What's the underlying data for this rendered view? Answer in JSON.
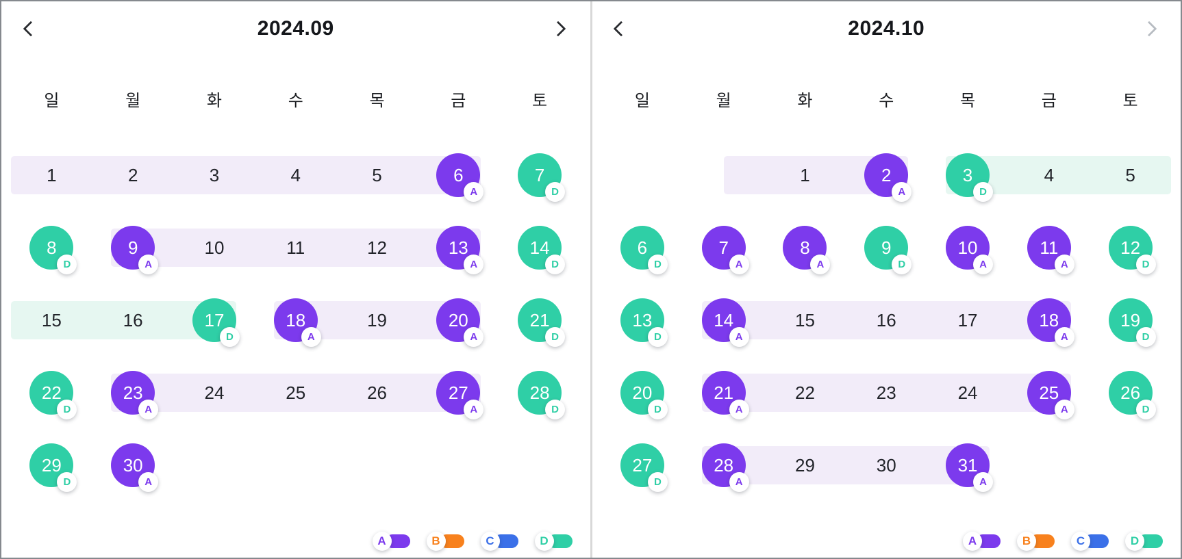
{
  "colors": {
    "A": "#7C3AED",
    "B": "#F8811D",
    "C": "#3B70E8",
    "D": "#2FCFA6",
    "band_A": "#F2ECF9",
    "band_D": "#E6F7F1",
    "nav_disabled": "#B7BCC2"
  },
  "weekdays": [
    "일",
    "월",
    "화",
    "수",
    "목",
    "금",
    "토"
  ],
  "legend": [
    {
      "label": "A",
      "color": "#7C3AED"
    },
    {
      "label": "B",
      "color": "#F8811D"
    },
    {
      "label": "C",
      "color": "#3B70E8"
    },
    {
      "label": "D",
      "color": "#2FCFA6"
    }
  ],
  "calendars": [
    {
      "title": "2024.09",
      "nav": {
        "prev_enabled": true,
        "next_enabled": true
      },
      "weeks": [
        {
          "bands": [
            {
              "event": "A",
              "from": 0,
              "to": 5,
              "from_edge": "row_start",
              "to_edge": "circle_right"
            }
          ],
          "days": [
            {
              "col": 0,
              "label": "1"
            },
            {
              "col": 1,
              "label": "2"
            },
            {
              "col": 2,
              "label": "3"
            },
            {
              "col": 3,
              "label": "4"
            },
            {
              "col": 4,
              "label": "5"
            },
            {
              "col": 5,
              "label": "6",
              "event": "A"
            },
            {
              "col": 6,
              "label": "7",
              "event": "D"
            }
          ]
        },
        {
          "bands": [
            {
              "event": "A",
              "from": 1,
              "to": 5,
              "from_edge": "circle_left",
              "to_edge": "circle_right"
            }
          ],
          "days": [
            {
              "col": 0,
              "label": "8",
              "event": "D"
            },
            {
              "col": 1,
              "label": "9",
              "event": "A"
            },
            {
              "col": 2,
              "label": "10"
            },
            {
              "col": 3,
              "label": "11"
            },
            {
              "col": 4,
              "label": "12"
            },
            {
              "col": 5,
              "label": "13",
              "event": "A"
            },
            {
              "col": 6,
              "label": "14",
              "event": "D"
            }
          ]
        },
        {
          "bands": [
            {
              "event": "D",
              "from": 0,
              "to": 2,
              "from_edge": "row_start",
              "to_edge": "circle_right"
            },
            {
              "event": "A",
              "from": 3,
              "to": 5,
              "from_edge": "circle_left",
              "to_edge": "circle_right"
            }
          ],
          "days": [
            {
              "col": 0,
              "label": "15"
            },
            {
              "col": 1,
              "label": "16"
            },
            {
              "col": 2,
              "label": "17",
              "event": "D"
            },
            {
              "col": 3,
              "label": "18",
              "event": "A"
            },
            {
              "col": 4,
              "label": "19"
            },
            {
              "col": 5,
              "label": "20",
              "event": "A"
            },
            {
              "col": 6,
              "label": "21",
              "event": "D"
            }
          ]
        },
        {
          "bands": [
            {
              "event": "A",
              "from": 1,
              "to": 5,
              "from_edge": "circle_left",
              "to_edge": "circle_right"
            }
          ],
          "days": [
            {
              "col": 0,
              "label": "22",
              "event": "D"
            },
            {
              "col": 1,
              "label": "23",
              "event": "A"
            },
            {
              "col": 2,
              "label": "24"
            },
            {
              "col": 3,
              "label": "25"
            },
            {
              "col": 4,
              "label": "26"
            },
            {
              "col": 5,
              "label": "27",
              "event": "A"
            },
            {
              "col": 6,
              "label": "28",
              "event": "D"
            }
          ]
        },
        {
          "bands": [],
          "days": [
            {
              "col": 0,
              "label": "29",
              "event": "D"
            },
            {
              "col": 1,
              "label": "30",
              "event": "A"
            }
          ]
        }
      ]
    },
    {
      "title": "2024.10",
      "nav": {
        "prev_enabled": true,
        "next_enabled": false
      },
      "weeks": [
        {
          "bands": [
            {
              "event": "A",
              "from": 1,
              "to": 3,
              "from_edge": "center",
              "to_edge": "circle_right"
            },
            {
              "event": "D",
              "from": 4,
              "to": 6,
              "from_edge": "circle_left",
              "to_edge": "row_end"
            }
          ],
          "days": [
            {
              "col": 2,
              "label": "1"
            },
            {
              "col": 3,
              "label": "2",
              "event": "A"
            },
            {
              "col": 4,
              "label": "3",
              "event": "D"
            },
            {
              "col": 5,
              "label": "4"
            },
            {
              "col": 6,
              "label": "5"
            }
          ]
        },
        {
          "bands": [],
          "days": [
            {
              "col": 0,
              "label": "6",
              "event": "D"
            },
            {
              "col": 1,
              "label": "7",
              "event": "A"
            },
            {
              "col": 2,
              "label": "8",
              "event": "A"
            },
            {
              "col": 3,
              "label": "9",
              "event": "D"
            },
            {
              "col": 4,
              "label": "10",
              "event": "A"
            },
            {
              "col": 5,
              "label": "11",
              "event": "A"
            },
            {
              "col": 6,
              "label": "12",
              "event": "D"
            }
          ]
        },
        {
          "bands": [
            {
              "event": "A",
              "from": 1,
              "to": 5,
              "from_edge": "circle_left",
              "to_edge": "circle_right"
            }
          ],
          "days": [
            {
              "col": 0,
              "label": "13",
              "event": "D"
            },
            {
              "col": 1,
              "label": "14",
              "event": "A"
            },
            {
              "col": 2,
              "label": "15"
            },
            {
              "col": 3,
              "label": "16"
            },
            {
              "col": 4,
              "label": "17"
            },
            {
              "col": 5,
              "label": "18",
              "event": "A"
            },
            {
              "col": 6,
              "label": "19",
              "event": "D"
            }
          ]
        },
        {
          "bands": [
            {
              "event": "A",
              "from": 1,
              "to": 5,
              "from_edge": "circle_left",
              "to_edge": "circle_right"
            }
          ],
          "days": [
            {
              "col": 0,
              "label": "20",
              "event": "D"
            },
            {
              "col": 1,
              "label": "21",
              "event": "A"
            },
            {
              "col": 2,
              "label": "22"
            },
            {
              "col": 3,
              "label": "23"
            },
            {
              "col": 4,
              "label": "24"
            },
            {
              "col": 5,
              "label": "25",
              "event": "A"
            },
            {
              "col": 6,
              "label": "26",
              "event": "D"
            }
          ]
        },
        {
          "bands": [
            {
              "event": "A",
              "from": 1,
              "to": 4,
              "from_edge": "circle_left",
              "to_edge": "circle_right"
            }
          ],
          "days": [
            {
              "col": 0,
              "label": "27",
              "event": "D"
            },
            {
              "col": 1,
              "label": "28",
              "event": "A"
            },
            {
              "col": 2,
              "label": "29"
            },
            {
              "col": 3,
              "label": "30"
            },
            {
              "col": 4,
              "label": "31",
              "event": "A"
            }
          ]
        }
      ]
    }
  ]
}
